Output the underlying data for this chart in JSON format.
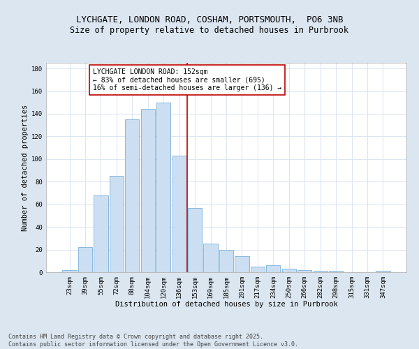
{
  "title_line1": "LYCHGATE, LONDON ROAD, COSHAM, PORTSMOUTH,  PO6 3NB",
  "title_line2": "Size of property relative to detached houses in Purbrook",
  "xlabel": "Distribution of detached houses by size in Purbrook",
  "ylabel": "Number of detached properties",
  "categories": [
    "23sqm",
    "39sqm",
    "55sqm",
    "72sqm",
    "88sqm",
    "104sqm",
    "120sqm",
    "136sqm",
    "153sqm",
    "169sqm",
    "185sqm",
    "201sqm",
    "217sqm",
    "234sqm",
    "250sqm",
    "266sqm",
    "282sqm",
    "298sqm",
    "315sqm",
    "331sqm",
    "347sqm"
  ],
  "values": [
    2,
    22,
    68,
    85,
    135,
    144,
    150,
    103,
    57,
    25,
    20,
    14,
    5,
    6,
    3,
    2,
    1,
    1,
    0,
    0,
    1
  ],
  "bar_color": "#ccdff2",
  "bar_edge_color": "#7ab0d8",
  "vline_x_idx": 7.5,
  "vline_color": "#c00000",
  "annotation_text": "LYCHGATE LONDON ROAD: 152sqm\n← 83% of detached houses are smaller (695)\n16% of semi-detached houses are larger (136) →",
  "annotation_box_color": "#ffffff",
  "annotation_box_edge": "#c00000",
  "ylim": [
    0,
    185
  ],
  "yticks": [
    0,
    20,
    40,
    60,
    80,
    100,
    120,
    140,
    160,
    180
  ],
  "bg_color": "#dce6f1",
  "plot_bg_color": "#ffffff",
  "footer_line1": "Contains HM Land Registry data © Crown copyright and database right 2025.",
  "footer_line2": "Contains public sector information licensed under the Open Government Licence v3.0.",
  "title_fontsize": 9,
  "subtitle_fontsize": 8.5,
  "axis_label_fontsize": 7.5,
  "tick_fontsize": 6.5,
  "annotation_fontsize": 7,
  "footer_fontsize": 6
}
